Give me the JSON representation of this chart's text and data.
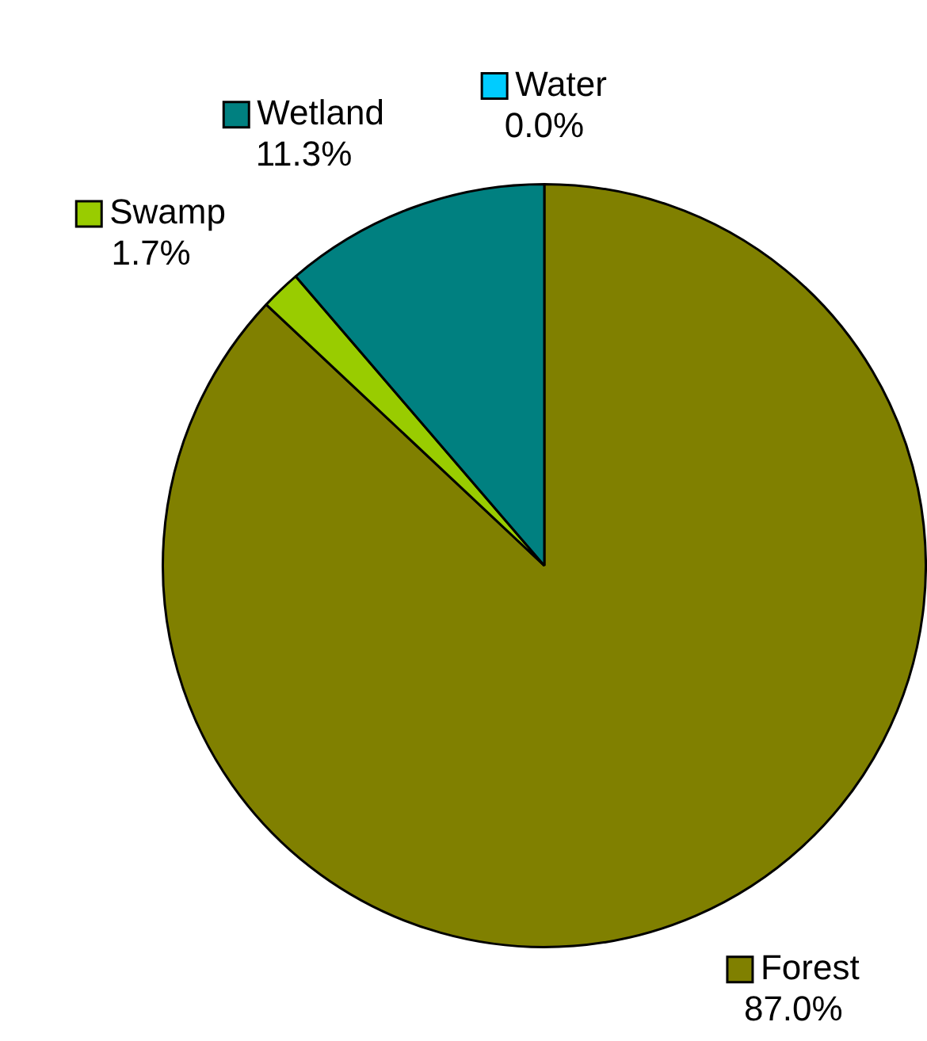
{
  "chart_data": {
    "type": "pie",
    "categories": [
      "Forest",
      "Swamp",
      "Wetland",
      "Water"
    ],
    "values": [
      87.0,
      1.7,
      11.3,
      0.0
    ],
    "colors": [
      "#808000",
      "#99cc00",
      "#008080",
      "#00ccff"
    ],
    "value_labels": [
      "87.0%",
      "1.7%",
      "11.3%",
      "0.0%"
    ],
    "legend": "top"
  }
}
